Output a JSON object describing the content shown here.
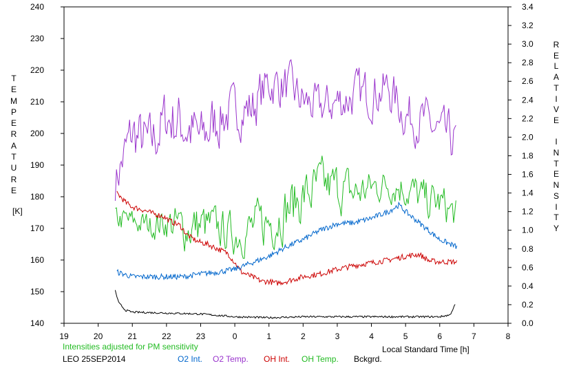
{
  "chart_data": {
    "type": "line",
    "left_axis": {
      "label": "TEMPERATURE",
      "unit": "[K]",
      "range": [
        140,
        240
      ],
      "ticks": [
        "140",
        "150",
        "160",
        "170",
        "180",
        "190",
        "200",
        "210",
        "220",
        "230",
        "240"
      ]
    },
    "right_axis": {
      "label": "RELATIVE INTENSITY",
      "range": [
        0.0,
        3.4
      ],
      "ticks": [
        "0.0",
        "0.2",
        "0.4",
        "0.6",
        "0.8",
        "1.0",
        "1.2",
        "1.4",
        "1.6",
        "1.8",
        "2.0",
        "2.2",
        "2.4",
        "2.6",
        "2.8",
        "3.0",
        "3.2",
        "3.4"
      ]
    },
    "x_axis": {
      "label": "Local Standard Time [h]",
      "range": [
        19,
        32
      ],
      "ticks": [
        "19",
        "20",
        "21",
        "22",
        "23",
        "0",
        "1",
        "2",
        "3",
        "4",
        "5",
        "6",
        "7",
        "8"
      ]
    },
    "note": "Intensities adjusted for PM sensitivity",
    "station": "LEO 25SEP2014",
    "legend": [
      {
        "name": "O2 Int.",
        "color": "#0066cc"
      },
      {
        "name": "O2 Temp.",
        "color": "#9933cc"
      },
      {
        "name": "OH Int.",
        "color": "#cc0000"
      },
      {
        "name": "OH Temp.",
        "color": "#22bb22"
      },
      {
        "name": "Bckgrd.",
        "color": "#000000"
      }
    ],
    "series": [
      {
        "name": "O2 Temp.",
        "axis": "left",
        "color": "#9933cc",
        "x": [
          20.5,
          21.0,
          21.5,
          22.0,
          22.5,
          23.0,
          23.5,
          24.0,
          24.5,
          25.0,
          25.5,
          26.0,
          26.5,
          27.0,
          27.5,
          28.0,
          28.5,
          29.0,
          29.5,
          30.0,
          30.5
        ],
        "y": [
          185,
          200,
          196,
          205,
          203,
          198,
          205,
          207,
          208,
          216,
          215,
          210,
          208,
          210,
          212,
          213,
          214,
          206,
          204,
          200,
          197
        ],
        "amp": [
          7,
          9,
          9,
          9,
          10,
          9,
          9,
          7,
          8,
          7,
          7,
          7,
          6,
          7,
          7,
          7,
          7,
          7,
          7,
          7,
          8
        ]
      },
      {
        "name": "OH Temp.",
        "axis": "left",
        "color": "#22bb22",
        "x": [
          20.5,
          21.0,
          21.5,
          22.0,
          22.5,
          23.0,
          23.5,
          24.0,
          24.5,
          25.0,
          25.5,
          26.0,
          26.5,
          27.0,
          27.5,
          28.0,
          28.5,
          29.0,
          29.5,
          30.0,
          30.5
        ],
        "y": [
          173,
          172,
          171,
          172,
          170,
          171,
          170,
          168,
          170,
          172,
          176,
          180,
          183,
          183,
          181,
          183,
          184,
          183,
          179,
          178,
          174
        ],
        "amp": [
          4,
          4,
          4,
          5,
          7,
          7,
          6,
          6,
          7,
          8,
          8,
          8,
          8,
          7,
          7,
          5,
          5,
          6,
          6,
          6,
          5
        ]
      },
      {
        "name": "OH Int.",
        "axis": "right",
        "color": "#cc0000",
        "x": [
          20.55,
          20.8,
          21.0,
          21.3,
          21.6,
          21.9,
          22.1,
          22.4,
          22.6,
          22.9,
          23.2,
          23.5,
          23.8,
          24.0,
          24.2,
          24.5,
          24.8,
          25.0,
          25.2,
          25.5,
          25.8,
          26.0,
          26.5,
          27.0,
          27.5,
          28.0,
          28.5,
          29.0,
          29.4,
          29.7,
          30.0,
          30.5
        ],
        "y": [
          1.4,
          1.3,
          1.25,
          1.22,
          1.18,
          1.15,
          1.1,
          1.05,
          0.95,
          0.88,
          0.85,
          0.8,
          0.75,
          0.65,
          0.55,
          0.5,
          0.45,
          0.45,
          0.43,
          0.45,
          0.48,
          0.5,
          0.53,
          0.58,
          0.62,
          0.65,
          0.68,
          0.72,
          0.74,
          0.67,
          0.66,
          0.66
        ],
        "amp": [
          0.03,
          0.03,
          0.03,
          0.03,
          0.03,
          0.03,
          0.03,
          0.03,
          0.03,
          0.03,
          0.03,
          0.03,
          0.03,
          0.03,
          0.03,
          0.03,
          0.03,
          0.03,
          0.03,
          0.03,
          0.03,
          0.03,
          0.03,
          0.03,
          0.03,
          0.03,
          0.03,
          0.03,
          0.03,
          0.03,
          0.03,
          0.03
        ]
      },
      {
        "name": "O2 Int.",
        "axis": "right",
        "color": "#0066cc",
        "x": [
          20.55,
          21.0,
          21.5,
          22.0,
          22.5,
          23.0,
          23.5,
          24.0,
          24.5,
          25.0,
          25.5,
          26.0,
          26.5,
          27.0,
          27.5,
          28.0,
          28.5,
          28.8,
          29.0,
          29.5,
          30.0,
          30.5
        ],
        "y": [
          0.55,
          0.5,
          0.5,
          0.5,
          0.5,
          0.53,
          0.55,
          0.58,
          0.65,
          0.72,
          0.82,
          0.9,
          1.0,
          1.07,
          1.08,
          1.13,
          1.2,
          1.27,
          1.2,
          1.05,
          0.9,
          0.82
        ],
        "amp": [
          0.03,
          0.03,
          0.03,
          0.03,
          0.03,
          0.03,
          0.03,
          0.03,
          0.03,
          0.03,
          0.03,
          0.03,
          0.03,
          0.03,
          0.03,
          0.03,
          0.03,
          0.03,
          0.03,
          0.03,
          0.03,
          0.03
        ]
      },
      {
        "name": "Bckgrd.",
        "axis": "right",
        "color": "#000000",
        "x": [
          20.5,
          20.6,
          20.8,
          21.0,
          22.0,
          23.0,
          24.0,
          25.0,
          26.0,
          27.0,
          28.0,
          29.0,
          30.0,
          30.3,
          30.45
        ],
        "y": [
          0.35,
          0.22,
          0.14,
          0.12,
          0.11,
          0.1,
          0.07,
          0.06,
          0.07,
          0.07,
          0.07,
          0.07,
          0.07,
          0.09,
          0.2
        ],
        "amp": [
          0.01,
          0.01,
          0.01,
          0.01,
          0.01,
          0.01,
          0.01,
          0.01,
          0.01,
          0.01,
          0.01,
          0.01,
          0.01,
          0.01,
          0.01
        ]
      }
    ]
  }
}
